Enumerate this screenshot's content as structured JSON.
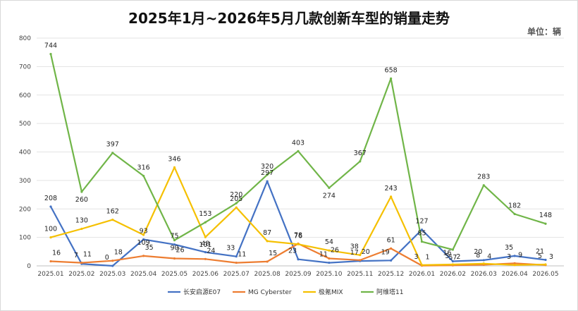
{
  "chart_data": {
    "type": "line",
    "title": "2025年1月~2026年5月几款创新车型的销量走势",
    "unit_label": "单位：辆",
    "xlabel": "",
    "ylabel": "",
    "ylim": [
      0,
      800
    ],
    "yticks": [
      0,
      100,
      200,
      300,
      400,
      500,
      600,
      700,
      800
    ],
    "grid": true,
    "legend_position": "bottom",
    "categories": [
      "2025.01",
      "2025.02",
      "2025.03",
      "2025.04",
      "2025.05",
      "2025.06",
      "2025.07",
      "2025.08",
      "2025.09",
      "2025.10",
      "2025.11",
      "2025.12",
      "2026.01",
      "2026.02",
      "2026.03",
      "2026.04",
      "2026.05"
    ],
    "series": [
      {
        "name": "长安启源E07",
        "color": "#4472c4",
        "values": [
          208,
          7,
          0,
          93,
          75,
          48,
          33,
          297,
          23,
          11,
          17,
          19,
          127,
          16,
          20,
          35,
          21
        ]
      },
      {
        "name": "MG Cyberster",
        "color": "#ed7d31",
        "values": [
          16,
          11,
          18,
          35,
          26,
          24,
          11,
          15,
          78,
          26,
          20,
          61,
          1,
          2,
          4,
          9,
          3
        ]
      },
      {
        "name": "极氪MIX",
        "color": "#f5c000",
        "values": [
          100,
          130,
          162,
          109,
          346,
          101,
          205,
          87,
          76,
          54,
          38,
          243,
          3,
          5,
          8,
          3,
          5
        ]
      },
      {
        "name": "阿维塔11",
        "color": "#70b548",
        "values": [
          744,
          260,
          397,
          316,
          90,
          153,
          220,
          320,
          403,
          274,
          367,
          658,
          85,
          57,
          283,
          182,
          148
        ]
      }
    ]
  }
}
